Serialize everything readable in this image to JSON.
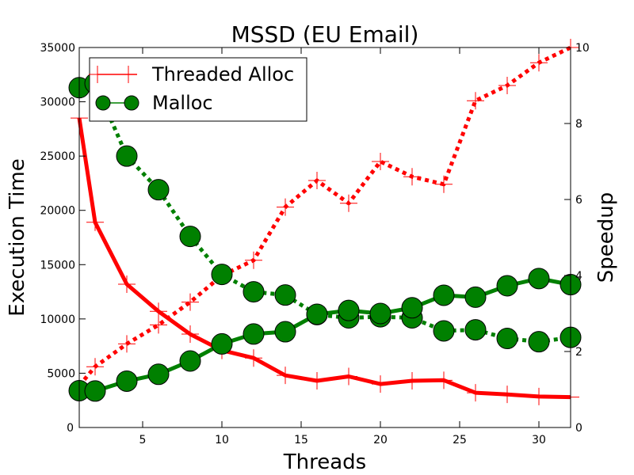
{
  "chart_data": {
    "type": "line",
    "title": "MSSD (EU Email)",
    "xlabel": "Threads",
    "ylabel": "Execution Time",
    "y2label": "Speedup",
    "xlim": [
      1,
      32
    ],
    "ylim": [
      0,
      35000
    ],
    "y2lim": [
      0,
      10
    ],
    "x_ticks": [
      5,
      10,
      15,
      20,
      25,
      30
    ],
    "y_ticks": [
      0,
      5000,
      10000,
      15000,
      20000,
      25000,
      30000,
      35000
    ],
    "y2_ticks": [
      0,
      2,
      4,
      6,
      8,
      10
    ],
    "legend": {
      "placement": "upper-left",
      "entries": [
        "Threaded Alloc",
        "Malloc"
      ]
    },
    "colors": {
      "threaded": "#ff0000",
      "malloc": "#008000"
    },
    "x": [
      1,
      2,
      4,
      6,
      8,
      10,
      12,
      14,
      16,
      18,
      20,
      22,
      24,
      26,
      28,
      30,
      32
    ],
    "series": [
      {
        "name": "Threaded Alloc",
        "axis": "left",
        "metric": "execution_time",
        "marker": "plus",
        "linestyle": "solid",
        "values": [
          28500,
          18900,
          13200,
          10700,
          8600,
          7100,
          6400,
          4800,
          4300,
          4700,
          4000,
          4300,
          4350,
          3200,
          3050,
          2850,
          2800
        ]
      },
      {
        "name": "Threaded Alloc",
        "axis": "right",
        "metric": "speedup",
        "marker": "plus",
        "linestyle": "dotted",
        "values": [
          1.1,
          1.6,
          2.2,
          2.7,
          3.3,
          4.0,
          4.4,
          5.8,
          6.5,
          5.9,
          7.0,
          6.6,
          6.4,
          8.6,
          9.0,
          9.6,
          10.0
        ]
      },
      {
        "name": "Malloc",
        "axis": "left",
        "metric": "execution_time",
        "marker": "circle",
        "linestyle": "dotted",
        "values": [
          31300,
          31700,
          25000,
          21900,
          17600,
          14100,
          12500,
          12200,
          10400,
          10100,
          10200,
          10100,
          8900,
          9000,
          8200,
          7900,
          8300
        ]
      },
      {
        "name": "Malloc",
        "axis": "right",
        "metric": "speedup",
        "marker": "circle",
        "linestyle": "solid",
        "values": [
          0.97,
          0.96,
          1.22,
          1.4,
          1.75,
          2.2,
          2.46,
          2.52,
          2.98,
          3.08,
          3.0,
          3.15,
          3.48,
          3.43,
          3.73,
          3.92,
          3.76
        ]
      }
    ]
  }
}
